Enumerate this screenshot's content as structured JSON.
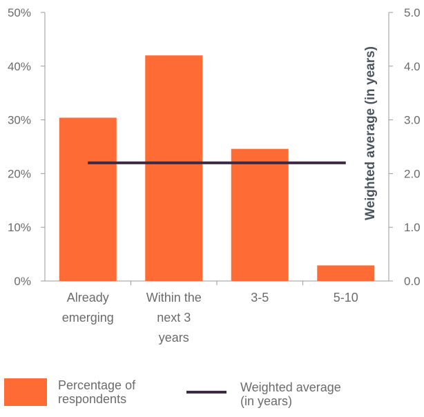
{
  "chart_data": {
    "type": "bar",
    "categories": [
      [
        "Already",
        "emerging"
      ],
      [
        "Within the",
        "next 3",
        "years"
      ],
      [
        "3-5"
      ],
      [
        "5-10"
      ]
    ],
    "series": [
      {
        "name": "Percentage of\nrespondents",
        "type": "bar",
        "axis": "left",
        "color": "#ff6b35",
        "values": [
          30.4,
          42.0,
          24.6,
          2.9
        ]
      },
      {
        "name": "Weighted average\n(in years)",
        "type": "line",
        "axis": "right",
        "color": "#3d2a45",
        "values": [
          2.2,
          2.2,
          2.2,
          2.2
        ]
      }
    ],
    "y_left": {
      "lim": [
        0,
        50
      ],
      "ticks": [
        "0%",
        "10%",
        "20%",
        "30%",
        "40%",
        "50%"
      ]
    },
    "y_right": {
      "label": "Weighted average (in years)",
      "lim": [
        0,
        5
      ],
      "ticks": [
        "0.0",
        "1.0",
        "2.0",
        "3.0",
        "4.0",
        "5.0"
      ]
    },
    "grid": false,
    "legend": "bottom"
  }
}
